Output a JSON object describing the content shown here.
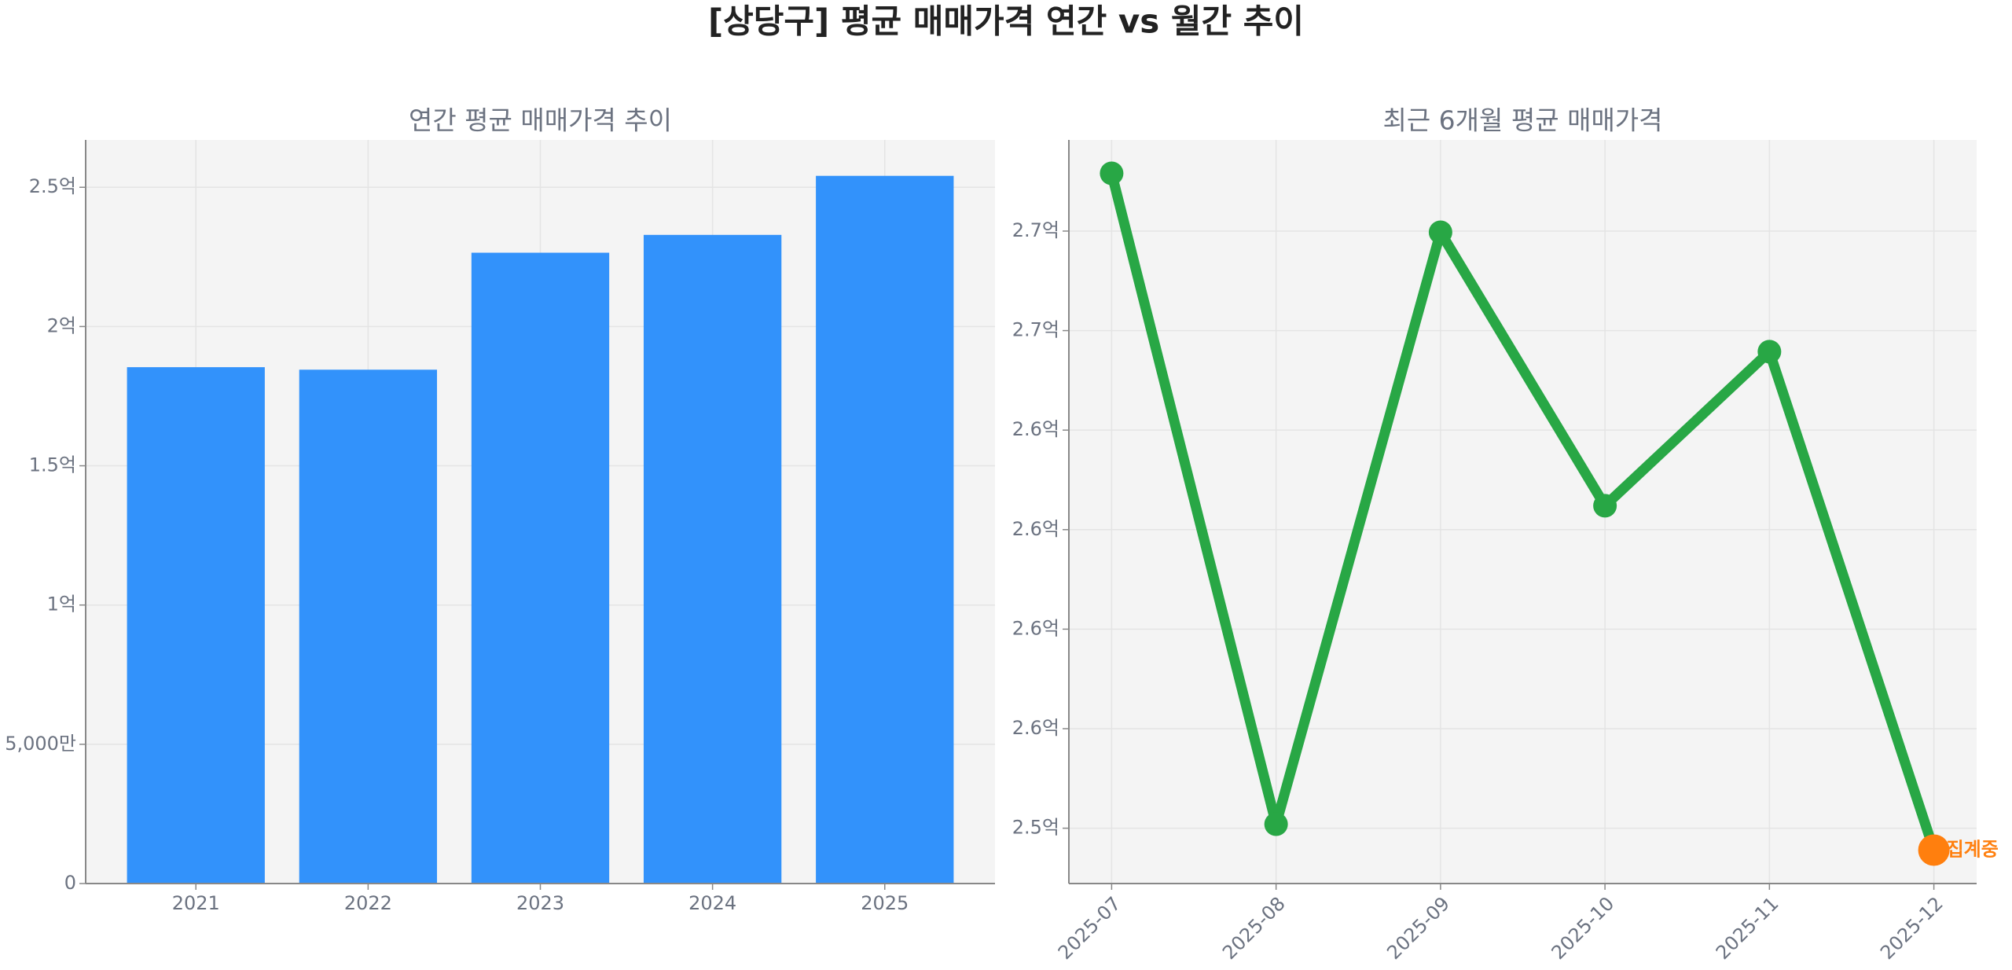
{
  "title": "[상당구] 평균 매매가격 연간 vs 월간 추이",
  "chart_data": [
    {
      "type": "bar",
      "title": "연간 평균 매매가격 추이",
      "categories": [
        "2021",
        "2022",
        "2023",
        "2024",
        "2025"
      ],
      "values": [
        185400000,
        184500000,
        226500000,
        232900000,
        254100000
      ],
      "color": "#3292fb",
      "ylim": [
        0,
        267000000
      ],
      "yticks": [
        0,
        {
          "value": 50000000,
          "label": "5,000만"
        },
        {
          "value": 100000000,
          "label": "1억"
        },
        {
          "value": 150000000,
          "label": "1.5억"
        },
        {
          "value": 200000000,
          "label": "2억"
        },
        {
          "value": 250000000,
          "label": "2.5억"
        }
      ],
      "grid": true
    },
    {
      "type": "line",
      "title": "최근 6개월 평균 매매가격",
      "categories": [
        "2025-07",
        "2025-08",
        "2025-09",
        "2025-10",
        "2025-11",
        "2025-12"
      ],
      "values": [
        271450000,
        255100000,
        269970000,
        263100000,
        266970000,
        254450000
      ],
      "color": "#28a745",
      "highlight": {
        "index": 5,
        "color": "#ff7f0e",
        "label": "집계중"
      },
      "ylim": [
        253610000,
        272290000
      ],
      "yticks": [
        {
          "value": 255000000,
          "label": "2.5억"
        },
        {
          "value": 257500000,
          "label": "2.6억"
        },
        {
          "value": 260000000,
          "label": "2.6억"
        },
        {
          "value": 262500000,
          "label": "2.6억"
        },
        {
          "value": 265000000,
          "label": "2.6억"
        },
        {
          "value": 267500000,
          "label": "2.7억"
        },
        {
          "value": 270000000,
          "label": "2.7억"
        }
      ],
      "grid": true
    }
  ]
}
